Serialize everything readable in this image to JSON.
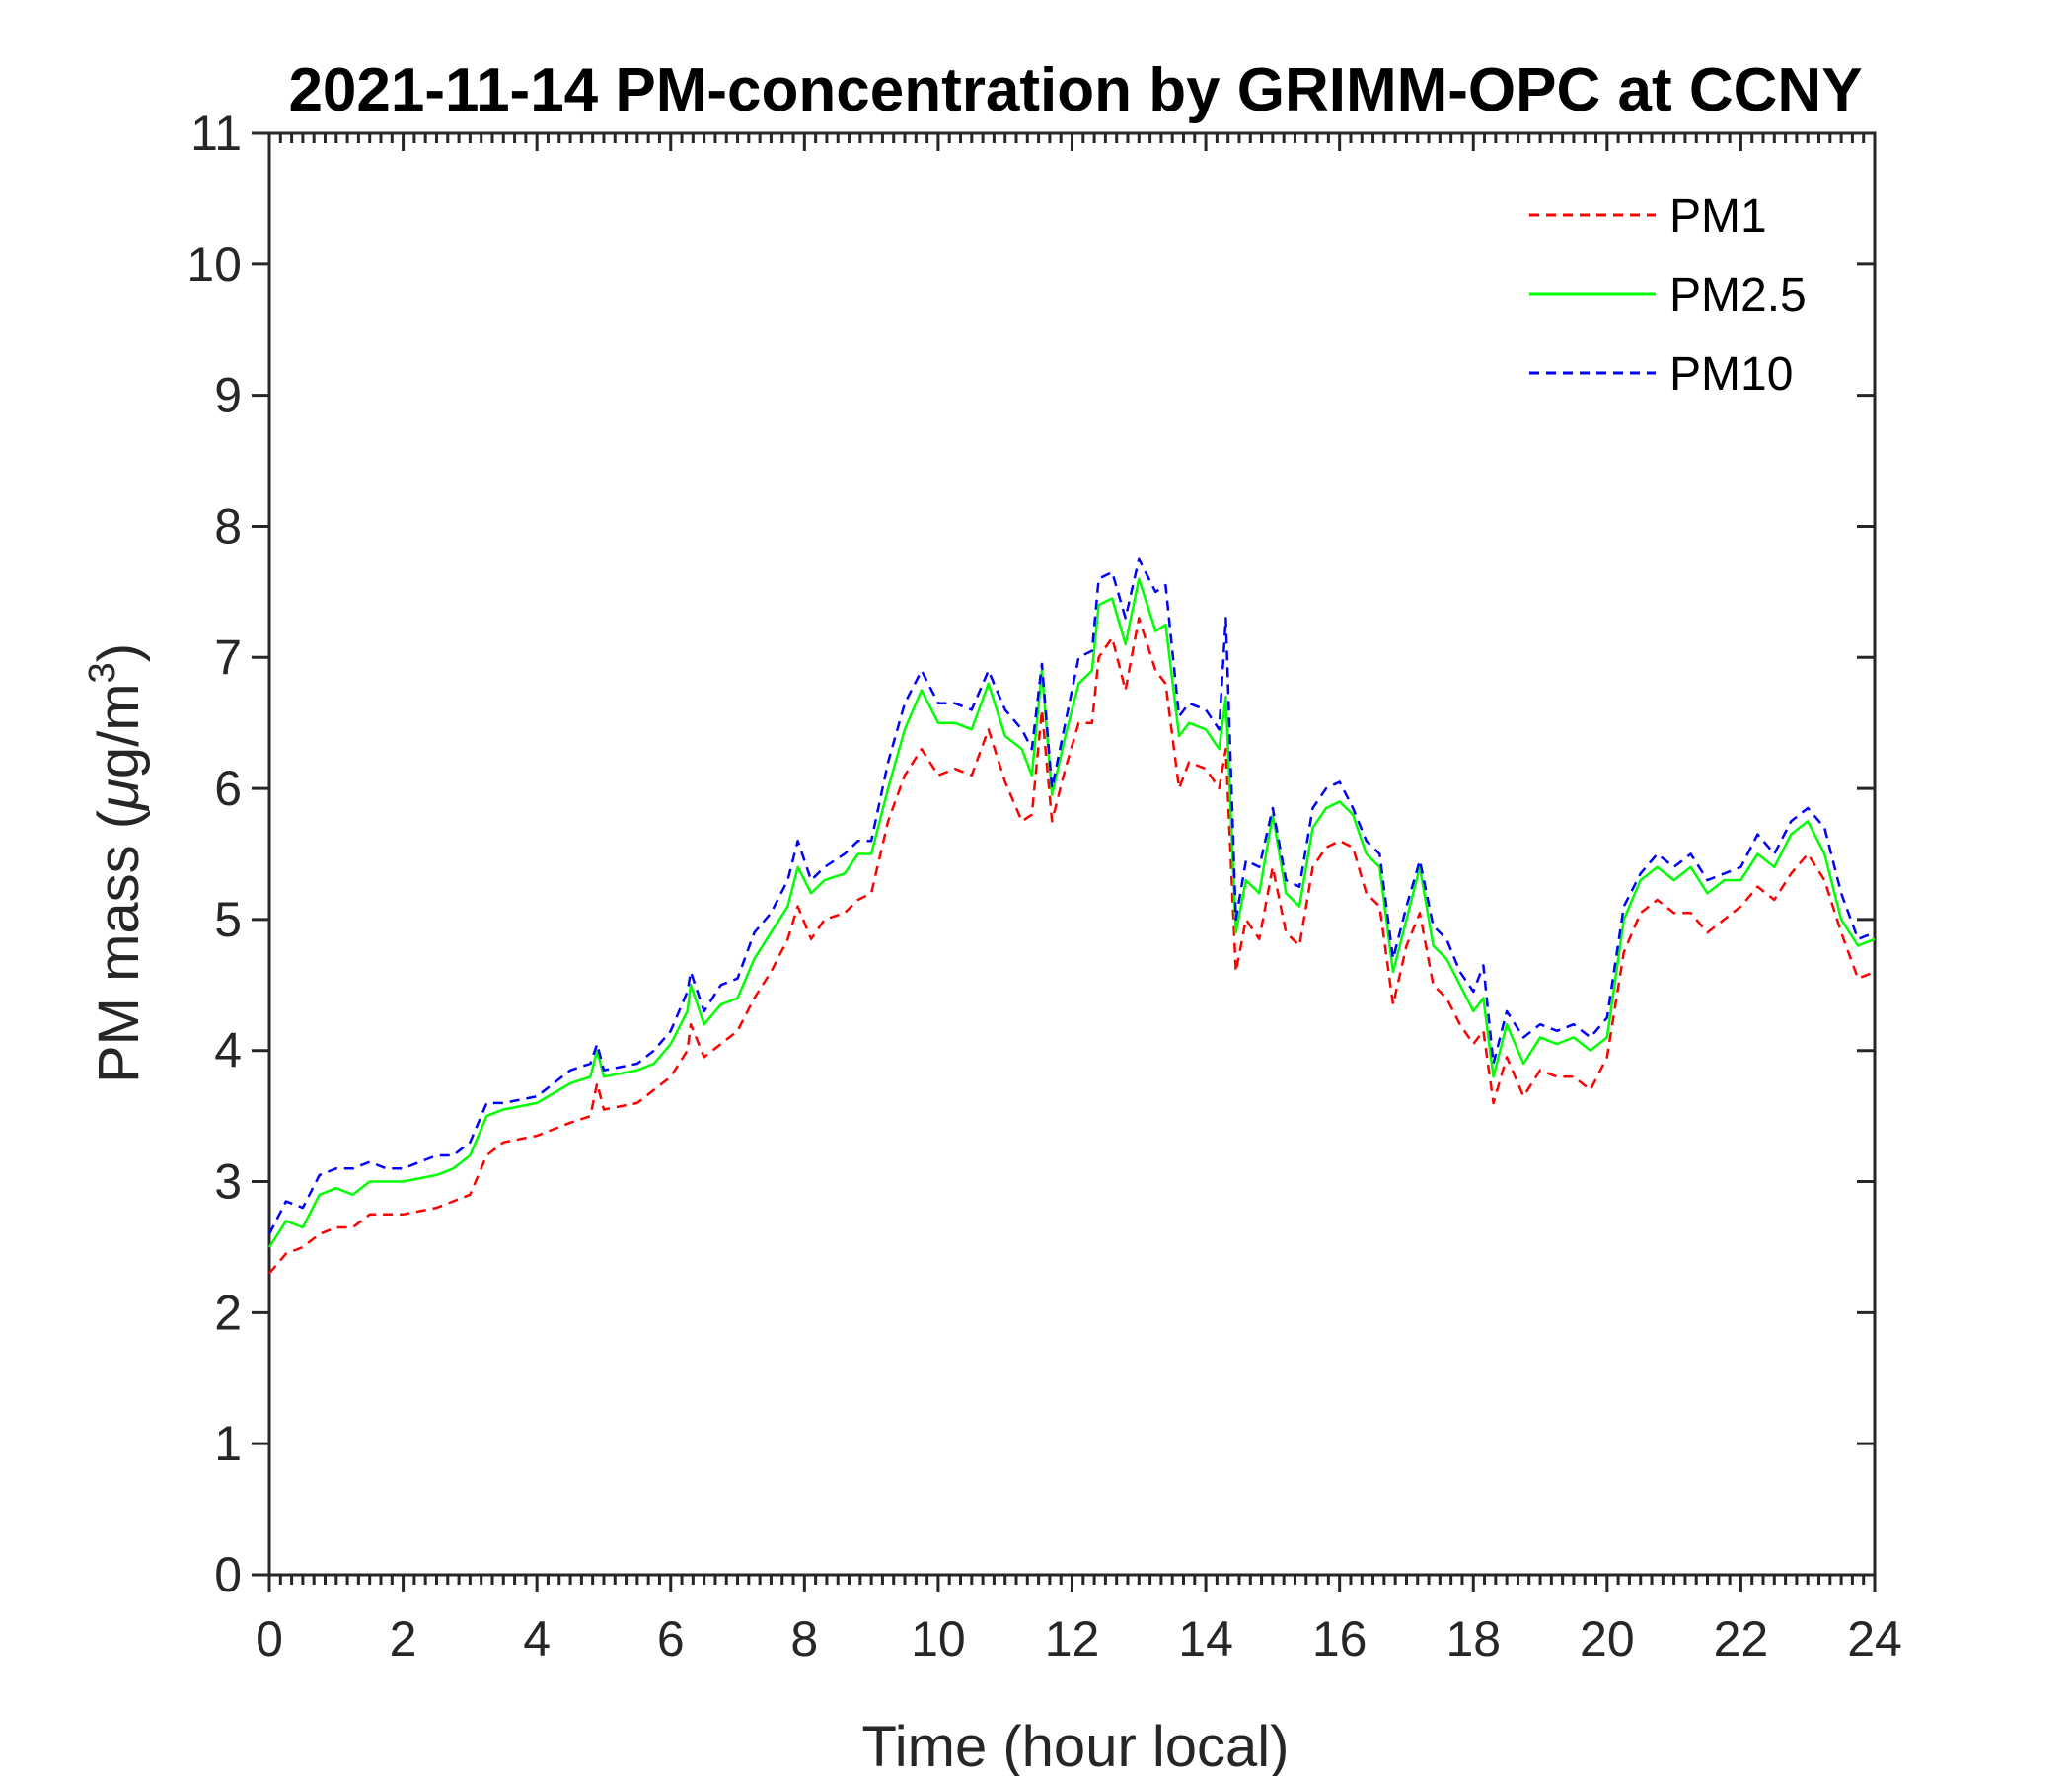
{
  "chart_data": {
    "type": "line",
    "title": "2021-11-14 PM-concentration by GRIMM-OPC at CCNY",
    "xlabel": "Time (hour local)",
    "ylabel_text": "PM mass (",
    "ylabel_mu": "μ",
    "ylabel_unit": "g/m",
    "ylabel_sup": "3",
    "ylabel_close": ")",
    "xlim": [
      0,
      24
    ],
    "ylim": [
      0,
      11
    ],
    "xticks": [
      "0",
      "2",
      "4",
      "6",
      "8",
      "10",
      "12",
      "14",
      "16",
      "18",
      "20",
      "22",
      "24"
    ],
    "yticks": [
      "0",
      "1",
      "2",
      "3",
      "4",
      "5",
      "6",
      "7",
      "8",
      "9",
      "10",
      "11"
    ],
    "grid": false,
    "legend_placement": "top-right",
    "x": [
      0,
      0.25,
      0.5,
      0.75,
      1,
      1.25,
      1.5,
      1.75,
      2,
      2.5,
      2.75,
      3,
      3.25,
      3.5,
      4,
      4.5,
      4.8,
      4.9,
      5,
      5.5,
      5.75,
      6,
      6.25,
      6.3,
      6.5,
      6.75,
      7,
      7.25,
      7.5,
      7.75,
      7.9,
      8.1,
      8.3,
      8.6,
      8.8,
      9,
      9.25,
      9.5,
      9.75,
      10,
      10.25,
      10.5,
      10.75,
      11,
      11.25,
      11.4,
      11.55,
      11.7,
      11.9,
      12.1,
      12.3,
      12.4,
      12.6,
      12.8,
      13,
      13.25,
      13.4,
      13.6,
      13.75,
      14,
      14.2,
      14.3,
      14.45,
      14.6,
      14.8,
      15,
      15.2,
      15.4,
      15.6,
      15.8,
      16,
      16.2,
      16.4,
      16.6,
      16.8,
      17,
      17.2,
      17.4,
      17.6,
      17.8,
      18,
      18.15,
      18.3,
      18.5,
      18.75,
      19,
      19.25,
      19.5,
      19.75,
      20,
      20.25,
      20.5,
      20.75,
      21,
      21.25,
      21.5,
      21.75,
      22,
      22.25,
      22.5,
      22.75,
      23,
      23.25,
      23.5,
      23.75,
      24
    ],
    "series": [
      {
        "name": "PM1",
        "color": "#ff0000",
        "dash": "dashed",
        "values": [
          2.3,
          2.45,
          2.5,
          2.6,
          2.65,
          2.65,
          2.75,
          2.75,
          2.75,
          2.8,
          2.85,
          2.9,
          3.2,
          3.3,
          3.35,
          3.45,
          3.5,
          3.75,
          3.55,
          3.6,
          3.7,
          3.8,
          4.0,
          4.2,
          3.95,
          4.05,
          4.15,
          4.4,
          4.6,
          4.85,
          5.1,
          4.85,
          5.0,
          5.05,
          5.15,
          5.2,
          5.75,
          6.1,
          6.3,
          6.1,
          6.15,
          6.1,
          6.45,
          6.05,
          5.75,
          5.8,
          6.6,
          5.75,
          6.15,
          6.5,
          6.5,
          7.0,
          7.15,
          6.75,
          7.3,
          6.9,
          6.8,
          6.0,
          6.2,
          6.15,
          6.0,
          6.3,
          4.6,
          5.0,
          4.85,
          5.4,
          4.9,
          4.8,
          5.4,
          5.55,
          5.6,
          5.55,
          5.2,
          5.1,
          4.35,
          4.8,
          5.05,
          4.5,
          4.4,
          4.2,
          4.05,
          4.15,
          3.6,
          3.95,
          3.65,
          3.85,
          3.8,
          3.8,
          3.7,
          3.95,
          4.75,
          5.05,
          5.15,
          5.05,
          5.05,
          4.9,
          5.0,
          5.1,
          5.25,
          5.15,
          5.35,
          5.5,
          5.3,
          4.9,
          4.55,
          4.6
        ]
      },
      {
        "name": "PM2.5",
        "color": "#00ff00",
        "dash": "solid",
        "values": [
          2.5,
          2.7,
          2.65,
          2.9,
          2.95,
          2.9,
          3.0,
          3.0,
          3.0,
          3.05,
          3.1,
          3.2,
          3.5,
          3.55,
          3.6,
          3.75,
          3.8,
          4.0,
          3.8,
          3.85,
          3.9,
          4.05,
          4.3,
          4.5,
          4.2,
          4.35,
          4.4,
          4.7,
          4.9,
          5.1,
          5.4,
          5.2,
          5.3,
          5.35,
          5.5,
          5.5,
          6.0,
          6.45,
          6.75,
          6.5,
          6.5,
          6.45,
          6.8,
          6.4,
          6.3,
          6.1,
          6.9,
          5.95,
          6.4,
          6.8,
          6.9,
          7.4,
          7.45,
          7.1,
          7.6,
          7.2,
          7.25,
          6.4,
          6.5,
          6.45,
          6.3,
          6.7,
          4.9,
          5.3,
          5.2,
          5.8,
          5.2,
          5.1,
          5.7,
          5.85,
          5.9,
          5.8,
          5.5,
          5.4,
          4.6,
          5.0,
          5.4,
          4.8,
          4.7,
          4.5,
          4.3,
          4.4,
          3.8,
          4.2,
          3.9,
          4.1,
          4.05,
          4.1,
          4.0,
          4.1,
          5.0,
          5.3,
          5.4,
          5.3,
          5.4,
          5.2,
          5.3,
          5.3,
          5.5,
          5.4,
          5.65,
          5.75,
          5.5,
          5.0,
          4.8,
          4.85
        ]
      },
      {
        "name": "PM10",
        "color": "#0000ff",
        "dash": "dashed",
        "values": [
          2.6,
          2.85,
          2.8,
          3.05,
          3.1,
          3.1,
          3.15,
          3.1,
          3.1,
          3.2,
          3.2,
          3.3,
          3.6,
          3.6,
          3.65,
          3.85,
          3.9,
          4.05,
          3.85,
          3.9,
          4.0,
          4.15,
          4.45,
          4.6,
          4.3,
          4.5,
          4.55,
          4.9,
          5.05,
          5.3,
          5.6,
          5.3,
          5.4,
          5.5,
          5.6,
          5.6,
          6.2,
          6.65,
          6.9,
          6.65,
          6.65,
          6.6,
          6.9,
          6.6,
          6.45,
          6.3,
          6.95,
          6.0,
          6.5,
          7.0,
          7.05,
          7.6,
          7.65,
          7.3,
          7.75,
          7.5,
          7.55,
          6.55,
          6.65,
          6.6,
          6.45,
          7.3,
          5.0,
          5.45,
          5.4,
          5.85,
          5.3,
          5.25,
          5.85,
          6.0,
          6.05,
          5.85,
          5.6,
          5.5,
          4.7,
          5.1,
          5.45,
          4.95,
          4.85,
          4.6,
          4.45,
          4.65,
          3.9,
          4.3,
          4.1,
          4.2,
          4.15,
          4.2,
          4.1,
          4.25,
          5.1,
          5.35,
          5.5,
          5.4,
          5.5,
          5.3,
          5.35,
          5.4,
          5.65,
          5.5,
          5.75,
          5.85,
          5.7,
          5.2,
          4.85,
          4.9
        ]
      }
    ]
  }
}
